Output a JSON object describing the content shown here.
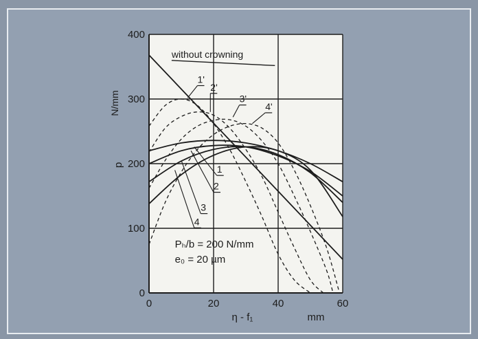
{
  "chart_data": {
    "type": "line",
    "title": "",
    "ylabel_symbol": "p",
    "ylabel_unit": "N/mm",
    "xlabel_symbol": "η - f₁",
    "xlabel_unit": "mm",
    "xlim": [
      0,
      60
    ],
    "ylim": [
      0,
      400
    ],
    "x_ticks": [
      "0",
      "20",
      "40",
      "60"
    ],
    "y_ticks": [
      "0",
      "100",
      "200",
      "300",
      "400"
    ],
    "grid": true,
    "annotation_line1": "Pₕ/b = 200 N/mm",
    "annotation_line2": "e₀ = 20 µm",
    "series": [
      {
        "name": "without crowning",
        "style": "solid",
        "x": [
          0,
          60
        ],
        "y": [
          368,
          52
        ]
      },
      {
        "name": "1",
        "style": "solid",
        "x": [
          0,
          10,
          20,
          30,
          40,
          50,
          60
        ],
        "y": [
          220,
          232,
          236,
          232,
          220,
          200,
          172
        ]
      },
      {
        "name": "2",
        "style": "solid",
        "x": [
          0,
          10,
          20,
          30,
          40,
          50,
          60
        ],
        "y": [
          200,
          220,
          228,
          226,
          212,
          188,
          150
        ]
      },
      {
        "name": "3",
        "style": "solid",
        "x": [
          0,
          10,
          20,
          30,
          40,
          50,
          60
        ],
        "y": [
          172,
          204,
          222,
          226,
          214,
          186,
          140
        ]
      },
      {
        "name": "4",
        "style": "solid",
        "x": [
          0,
          10,
          20,
          30,
          40,
          50,
          60
        ],
        "y": [
          138,
          183,
          213,
          226,
          220,
          190,
          118
        ]
      },
      {
        "name": "1'",
        "style": "dashed",
        "x": [
          0,
          5,
          10,
          15,
          20,
          25,
          30,
          35,
          40,
          45,
          50
        ],
        "y": [
          258,
          290,
          300,
          290,
          262,
          222,
          172,
          118,
          60,
          20,
          0
        ]
      },
      {
        "name": "2'",
        "style": "dashed",
        "x": [
          0,
          5,
          10,
          15,
          20,
          25,
          30,
          35,
          40,
          45,
          50,
          54
        ],
        "y": [
          218,
          255,
          273,
          280,
          275,
          255,
          222,
          180,
          125,
          70,
          20,
          0
        ]
      },
      {
        "name": "3'",
        "style": "dashed",
        "x": [
          0,
          5,
          10,
          15,
          20,
          25,
          30,
          35,
          40,
          45,
          50,
          55,
          57
        ],
        "y": [
          162,
          205,
          238,
          258,
          267,
          268,
          258,
          235,
          200,
          150,
          95,
          35,
          0
        ]
      },
      {
        "name": "4'",
        "style": "dashed",
        "x": [
          0,
          5,
          10,
          15,
          20,
          25,
          30,
          35,
          40,
          45,
          50,
          55,
          59
        ],
        "y": [
          75,
          140,
          187,
          222,
          245,
          258,
          262,
          255,
          232,
          190,
          135,
          70,
          0
        ]
      }
    ]
  }
}
